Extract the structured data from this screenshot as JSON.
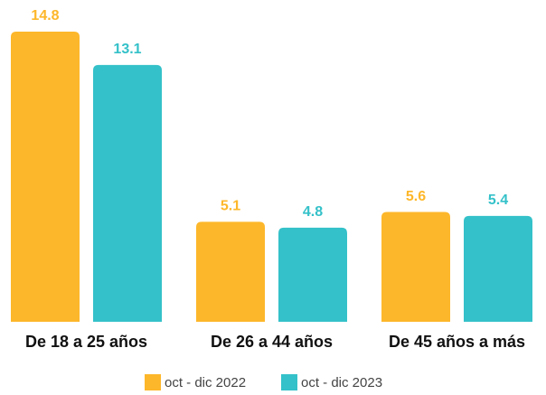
{
  "chart_data": {
    "type": "bar",
    "categories": [
      "De 18 a 25 años",
      "De 26 a 44 años",
      "De 45 años a más"
    ],
    "series": [
      {
        "name": "oct - dic 2022",
        "color": "#FDB72A",
        "values": [
          14.8,
          5.1,
          5.6
        ]
      },
      {
        "name": "oct - dic 2023",
        "color": "#34C1C9",
        "values": [
          13.1,
          4.8,
          5.4
        ]
      }
    ]
  }
}
